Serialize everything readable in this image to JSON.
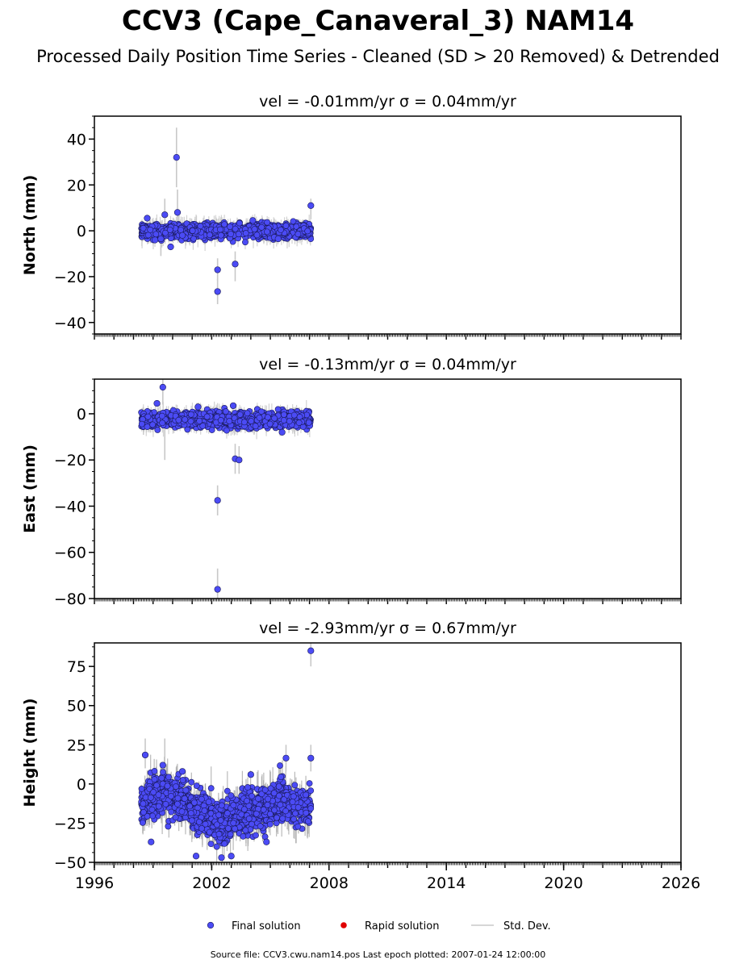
{
  "title": "CCV3 (Cape_Canaveral_3) NAM14",
  "subtitle": "Processed Daily Position Time Series - Cleaned (SD > 20 Removed) & Detrended",
  "footer": "Source file: CCV3.cwu.nam14.pos  Last epoch plotted: 2007-01-24 12:00:00",
  "colors": {
    "final": "#4b4bf5",
    "rapid": "#e00000",
    "stddev": "#c8c8c8"
  },
  "chart_data": [
    {
      "type": "scatter",
      "title": "vel = -0.01mm/yr   σ = 0.04mm/yr",
      "ylabel": "North (mm)",
      "xlim": [
        1996,
        2026
      ],
      "ylim": [
        -45,
        50
      ],
      "yticks": [
        -40,
        -20,
        0,
        20,
        40
      ],
      "xticks": [
        1996,
        2002,
        2008,
        2014,
        2020,
        2026
      ],
      "data_range": [
        1998.4,
        2007.07
      ],
      "band": {
        "center": 0,
        "spread": 2.2
      },
      "series": [
        {
          "name": "Final solution",
          "points": [
            [
              1998.7,
              5.5
            ],
            [
              1999.1,
              -4
            ],
            [
              1999.4,
              -3.5
            ],
            [
              1999.6,
              7
            ],
            [
              1999.9,
              -7
            ],
            [
              2000.2,
              32
            ],
            [
              2000.25,
              8
            ],
            [
              2000.5,
              -2
            ],
            [
              2002.3,
              -17
            ],
            [
              2002.3,
              -26.5
            ],
            [
              2003.2,
              -14.5
            ],
            [
              2007.07,
              11
            ],
            [
              2004.1,
              4.5
            ],
            [
              2005.4,
              -3.5
            ]
          ]
        }
      ],
      "errorbars": [
        [
          2000.2,
          19,
          45
        ],
        [
          2002.3,
          -22,
          -12
        ],
        [
          2002.3,
          -32,
          -21
        ],
        [
          2003.2,
          -22,
          -9
        ],
        [
          2000.25,
          0,
          18
        ],
        [
          1999.4,
          -11,
          4
        ],
        [
          1999.6,
          0,
          14
        ],
        [
          2007.07,
          5,
          14
        ]
      ]
    },
    {
      "type": "scatter",
      "title": "vel = -0.13mm/yr   σ = 0.04mm/yr",
      "ylabel": "East (mm)",
      "xlim": [
        1996,
        2026
      ],
      "ylim": [
        -80,
        15
      ],
      "yticks": [
        -80,
        -60,
        -40,
        -20,
        0
      ],
      "xticks": [
        1996,
        2002,
        2008,
        2014,
        2020,
        2026
      ],
      "data_range": [
        1998.4,
        2007.07
      ],
      "band": {
        "center": -2.5,
        "spread": 2.3
      },
      "series": [
        {
          "name": "Final solution",
          "points": [
            [
              1999.2,
              4.5
            ],
            [
              1999.5,
              11.5
            ],
            [
              2002.3,
              -37.5
            ],
            [
              2002.3,
              -76
            ],
            [
              2003.2,
              -19.5
            ],
            [
              2003.4,
              -20
            ],
            [
              2003.1,
              3.5
            ],
            [
              2005.6,
              -8
            ],
            [
              2001.3,
              3
            ]
          ]
        }
      ],
      "errorbars": [
        [
          1999.5,
          4,
          15
        ],
        [
          1999.6,
          -20,
          -2
        ],
        [
          2002.3,
          -44,
          -31
        ],
        [
          2002.3,
          -80,
          -67
        ],
        [
          2003.2,
          -26,
          -13
        ],
        [
          2003.4,
          -26,
          -14
        ]
      ]
    },
    {
      "type": "scatter",
      "title": "vel = -2.93mm/yr   σ = 0.67mm/yr",
      "ylabel": "Height (mm)",
      "xlim": [
        1996,
        2026
      ],
      "ylim": [
        -50,
        90
      ],
      "yticks": [
        -50,
        -25,
        0,
        25,
        50,
        75
      ],
      "xticks": [
        1996,
        2002,
        2008,
        2014,
        2020,
        2026
      ],
      "data_range": [
        1998.4,
        2007.07
      ],
      "band": {
        "center": -14,
        "spread": 9,
        "drift": [
          [
            1998.4,
            -12
          ],
          [
            1999.5,
            -5
          ],
          [
            2000.5,
            -12
          ],
          [
            2001.5,
            -20
          ],
          [
            2002.5,
            -24
          ],
          [
            2003.5,
            -18
          ],
          [
            2004.5,
            -16
          ],
          [
            2005.5,
            -10
          ],
          [
            2006.5,
            -14
          ],
          [
            2007.07,
            -15
          ]
        ]
      },
      "series": [
        {
          "name": "Final solution",
          "points": [
            [
              1998.6,
              18.5
            ],
            [
              2007.07,
              85
            ],
            [
              2007.07,
              16.5
            ],
            [
              1999.5,
              12
            ],
            [
              2000.5,
              8
            ],
            [
              2004.0,
              6
            ],
            [
              2005.8,
              16.5
            ],
            [
              2002.5,
              -47
            ],
            [
              2001.2,
              -46
            ],
            [
              2003.0,
              -46
            ],
            [
              1998.9,
              -37
            ],
            [
              2004.8,
              -37
            ]
          ]
        }
      ],
      "errorbars": [
        [
          2007.07,
          75,
          95
        ],
        [
          2007.07,
          8,
          25
        ],
        [
          1998.6,
          10,
          29
        ],
        [
          1999.6,
          3,
          29
        ],
        [
          2005.8,
          8,
          25
        ]
      ]
    }
  ],
  "legend": {
    "items": [
      {
        "label": "Final solution",
        "kind": "marker",
        "color": "#4b4bf5"
      },
      {
        "label": "Rapid solution",
        "kind": "marker",
        "color": "#e00000"
      },
      {
        "label": "Std. Dev.",
        "kind": "line",
        "color": "#c8c8c8"
      }
    ]
  }
}
